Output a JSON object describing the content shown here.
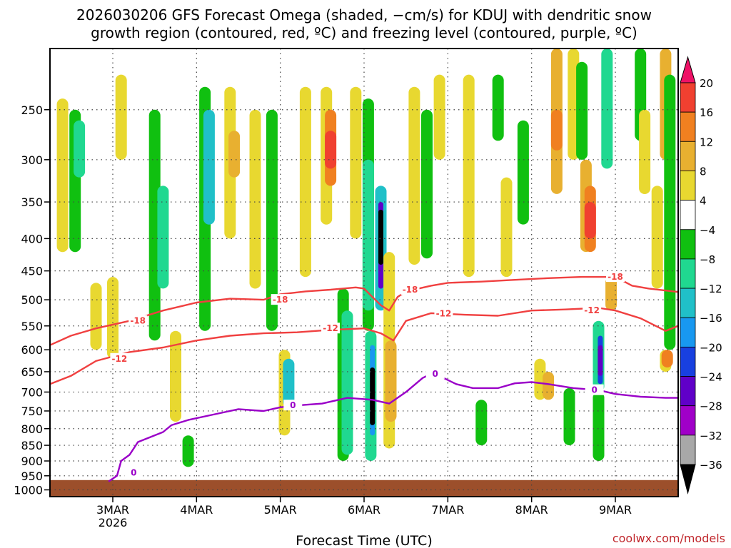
{
  "title": {
    "line1": "2026030206 GFS Forecast Omega (shaded, −cm/s) for KDUJ with dendritic snow",
    "line2": "growth region (contoured, red, ºC) and freezing level (contoured, purple, ºC)"
  },
  "credit": "coolwx.com/models",
  "colors": {
    "dsgz_contour": "#f04040",
    "freezing_contour": "#9a00c8",
    "terrain": "#9c4f2b",
    "grid": "#444444"
  },
  "chart_data": {
    "type": "heatmap",
    "title": "2026030206 GFS Forecast Omega for KDUJ",
    "xlabel": "Forecast Time (UTC)",
    "ylabel": "",
    "x_ticks": [
      {
        "label": "3MAR",
        "sub": "2026",
        "day": 3
      },
      {
        "label": "4MAR",
        "day": 4
      },
      {
        "label": "5MAR",
        "day": 5
      },
      {
        "label": "6MAR",
        "day": 6
      },
      {
        "label": "7MAR",
        "day": 7
      },
      {
        "label": "8MAR",
        "day": 8
      },
      {
        "label": "9MAR",
        "day": 9
      }
    ],
    "xlim": [
      2.25,
      9.75
    ],
    "y_ticks": [
      250,
      300,
      350,
      400,
      450,
      500,
      550,
      600,
      650,
      700,
      750,
      800,
      850,
      900,
      950,
      1000
    ],
    "ylim_hpa": [
      200,
      1025
    ],
    "terrain_surface_hpa": 965,
    "colorbar": {
      "labels": [
        "20",
        "16",
        "12",
        "8",
        "4",
        "−4",
        "−8",
        "−12",
        "−16",
        "−20",
        "−24",
        "−28",
        "−32",
        "−36"
      ],
      "colors": [
        "#ee1166",
        "#f04030",
        "#f08020",
        "#e8b030",
        "#e8d830",
        "#ffffff",
        "#10c010",
        "#20d890",
        "#20c0c8",
        "#1898f0",
        "#1840e0",
        "#6000c8",
        "#a000c8",
        "#a8a8a8",
        "#000000"
      ]
    },
    "omega_cells": [
      {
        "day": 2.4,
        "p0": 240,
        "p1": 420,
        "lvl": 4
      },
      {
        "day": 2.55,
        "p0": 250,
        "p1": 420,
        "lvl": -8
      },
      {
        "day": 2.6,
        "p0": 260,
        "p1": 320,
        "lvl": -12
      },
      {
        "day": 2.8,
        "p0": 470,
        "p1": 600,
        "lvl": 4
      },
      {
        "day": 3.0,
        "p0": 460,
        "p1": 620,
        "lvl": 4
      },
      {
        "day": 3.1,
        "p0": 220,
        "p1": 300,
        "lvl": 4
      },
      {
        "day": 3.5,
        "p0": 250,
        "p1": 580,
        "lvl": -8
      },
      {
        "day": 3.6,
        "p0": 330,
        "p1": 480,
        "lvl": -12
      },
      {
        "day": 3.75,
        "p0": 560,
        "p1": 780,
        "lvl": 4
      },
      {
        "day": 3.9,
        "p0": 820,
        "p1": 920,
        "lvl": -8
      },
      {
        "day": 4.1,
        "p0": 230,
        "p1": 560,
        "lvl": -8
      },
      {
        "day": 4.15,
        "p0": 250,
        "p1": 380,
        "lvl": -16
      },
      {
        "day": 4.4,
        "p0": 230,
        "p1": 400,
        "lvl": 4
      },
      {
        "day": 4.45,
        "p0": 270,
        "p1": 320,
        "lvl": 8
      },
      {
        "day": 4.7,
        "p0": 250,
        "p1": 480,
        "lvl": 4
      },
      {
        "day": 4.9,
        "p0": 250,
        "p1": 560,
        "lvl": -8
      },
      {
        "day": 5.05,
        "p0": 600,
        "p1": 820,
        "lvl": 4
      },
      {
        "day": 5.1,
        "p0": 620,
        "p1": 740,
        "lvl": -16
      },
      {
        "day": 5.3,
        "p0": 230,
        "p1": 460,
        "lvl": 4
      },
      {
        "day": 5.55,
        "p0": 230,
        "p1": 380,
        "lvl": 4
      },
      {
        "day": 5.6,
        "p0": 250,
        "p1": 330,
        "lvl": 12
      },
      {
        "day": 5.6,
        "p0": 270,
        "p1": 310,
        "lvl": 16
      },
      {
        "day": 5.75,
        "p0": 480,
        "p1": 900,
        "lvl": -8
      },
      {
        "day": 5.8,
        "p0": 520,
        "p1": 880,
        "lvl": -12
      },
      {
        "day": 5.9,
        "p0": 230,
        "p1": 400,
        "lvl": 4
      },
      {
        "day": 6.05,
        "p0": 240,
        "p1": 560,
        "lvl": -8
      },
      {
        "day": 6.05,
        "p0": 300,
        "p1": 520,
        "lvl": -12
      },
      {
        "day": 6.08,
        "p0": 560,
        "p1": 900,
        "lvl": -12
      },
      {
        "day": 6.1,
        "p0": 590,
        "p1": 820,
        "lvl": -20
      },
      {
        "day": 6.1,
        "p0": 640,
        "p1": 790,
        "lvl": -36
      },
      {
        "day": 6.2,
        "p0": 330,
        "p1": 520,
        "lvl": -16
      },
      {
        "day": 6.2,
        "p0": 350,
        "p1": 480,
        "lvl": -28
      },
      {
        "day": 6.2,
        "p0": 360,
        "p1": 440,
        "lvl": -36
      },
      {
        "day": 6.3,
        "p0": 420,
        "p1": 860,
        "lvl": 4
      },
      {
        "day": 6.32,
        "p0": 580,
        "p1": 780,
        "lvl": 8
      },
      {
        "day": 6.6,
        "p0": 230,
        "p1": 440,
        "lvl": 4
      },
      {
        "day": 6.75,
        "p0": 250,
        "p1": 430,
        "lvl": -8
      },
      {
        "day": 6.9,
        "p0": 220,
        "p1": 300,
        "lvl": 4
      },
      {
        "day": 7.25,
        "p0": 220,
        "p1": 460,
        "lvl": 4
      },
      {
        "day": 7.4,
        "p0": 720,
        "p1": 850,
        "lvl": -8
      },
      {
        "day": 7.6,
        "p0": 220,
        "p1": 280,
        "lvl": -8
      },
      {
        "day": 7.7,
        "p0": 320,
        "p1": 460,
        "lvl": 4
      },
      {
        "day": 7.9,
        "p0": 260,
        "p1": 380,
        "lvl": -8
      },
      {
        "day": 8.1,
        "p0": 620,
        "p1": 720,
        "lvl": 4
      },
      {
        "day": 8.2,
        "p0": 650,
        "p1": 720,
        "lvl": 8
      },
      {
        "day": 8.3,
        "p0": 200,
        "p1": 340,
        "lvl": 8
      },
      {
        "day": 8.3,
        "p0": 250,
        "p1": 290,
        "lvl": 12
      },
      {
        "day": 8.45,
        "p0": 690,
        "p1": 850,
        "lvl": -8
      },
      {
        "day": 8.5,
        "p0": 200,
        "p1": 300,
        "lvl": 4
      },
      {
        "day": 8.6,
        "p0": 210,
        "p1": 300,
        "lvl": -8
      },
      {
        "day": 8.65,
        "p0": 300,
        "p1": 420,
        "lvl": 8
      },
      {
        "day": 8.7,
        "p0": 330,
        "p1": 420,
        "lvl": 12
      },
      {
        "day": 8.7,
        "p0": 350,
        "p1": 400,
        "lvl": 16
      },
      {
        "day": 8.8,
        "p0": 540,
        "p1": 700,
        "lvl": -12
      },
      {
        "day": 8.82,
        "p0": 570,
        "p1": 680,
        "lvl": -24
      },
      {
        "day": 8.82,
        "p0": 590,
        "p1": 660,
        "lvl": -28
      },
      {
        "day": 8.8,
        "p0": 700,
        "p1": 900,
        "lvl": -8
      },
      {
        "day": 8.9,
        "p0": 200,
        "p1": 310,
        "lvl": -12
      },
      {
        "day": 8.95,
        "p0": 460,
        "p1": 520,
        "lvl": 8
      },
      {
        "day": 9.3,
        "p0": 200,
        "p1": 280,
        "lvl": -8
      },
      {
        "day": 9.35,
        "p0": 250,
        "p1": 340,
        "lvl": 4
      },
      {
        "day": 9.5,
        "p0": 330,
        "p1": 480,
        "lvl": 4
      },
      {
        "day": 9.6,
        "p0": 600,
        "p1": 650,
        "lvl": 4
      },
      {
        "day": 9.6,
        "p0": 200,
        "p1": 300,
        "lvl": 8
      },
      {
        "day": 9.62,
        "p0": 600,
        "p1": 640,
        "lvl": 12
      },
      {
        "day": 9.65,
        "p0": 220,
        "p1": 600,
        "lvl": -8
      }
    ],
    "contours": [
      {
        "name": "-18",
        "color_key": "dsgz_contour",
        "label_text": "-18",
        "points": [
          [
            2.25,
            590
          ],
          [
            2.5,
            570
          ],
          [
            2.8,
            555
          ],
          [
            3.2,
            540
          ],
          [
            3.6,
            520
          ],
          [
            4.0,
            505
          ],
          [
            4.4,
            498
          ],
          [
            4.8,
            500
          ],
          [
            5.0,
            490
          ],
          [
            5.3,
            485
          ],
          [
            5.6,
            482
          ],
          [
            5.9,
            478
          ],
          [
            6.0,
            480
          ],
          [
            6.1,
            495
          ],
          [
            6.2,
            510
          ],
          [
            6.3,
            520
          ],
          [
            6.4,
            495
          ],
          [
            6.5,
            485
          ],
          [
            6.8,
            475
          ],
          [
            7.0,
            470
          ],
          [
            7.4,
            468
          ],
          [
            7.8,
            465
          ],
          [
            8.2,
            462
          ],
          [
            8.6,
            460
          ],
          [
            9.0,
            460
          ],
          [
            9.2,
            475
          ],
          [
            9.4,
            480
          ],
          [
            9.75,
            486
          ]
        ],
        "labels_at": [
          [
            3.3,
            540
          ],
          [
            5.0,
            500
          ],
          [
            6.55,
            482
          ],
          [
            9.0,
            460
          ]
        ]
      },
      {
        "name": "-12",
        "color_key": "dsgz_contour",
        "label_text": "-12",
        "points": [
          [
            2.25,
            680
          ],
          [
            2.5,
            660
          ],
          [
            2.8,
            625
          ],
          [
            3.2,
            605
          ],
          [
            3.6,
            595
          ],
          [
            4.0,
            580
          ],
          [
            4.4,
            570
          ],
          [
            4.8,
            565
          ],
          [
            5.2,
            563
          ],
          [
            5.6,
            558
          ],
          [
            6.0,
            555
          ],
          [
            6.2,
            565
          ],
          [
            6.35,
            580
          ],
          [
            6.5,
            540
          ],
          [
            6.8,
            525
          ],
          [
            7.2,
            528
          ],
          [
            7.6,
            530
          ],
          [
            8.0,
            520
          ],
          [
            8.4,
            518
          ],
          [
            8.8,
            515
          ],
          [
            9.0,
            520
          ],
          [
            9.3,
            535
          ],
          [
            9.6,
            560
          ],
          [
            9.75,
            550
          ]
        ],
        "labels_at": [
          [
            3.08,
            620
          ],
          [
            5.6,
            555
          ],
          [
            6.95,
            526
          ],
          [
            8.72,
            520
          ]
        ]
      },
      {
        "name": "0",
        "color_key": "freezing_contour",
        "label_text": "0",
        "points": [
          [
            2.95,
            970
          ],
          [
            3.05,
            950
          ],
          [
            3.1,
            900
          ],
          [
            3.2,
            880
          ],
          [
            3.3,
            840
          ],
          [
            3.6,
            810
          ],
          [
            3.7,
            790
          ],
          [
            3.9,
            775
          ],
          [
            4.2,
            760
          ],
          [
            4.5,
            745
          ],
          [
            4.8,
            750
          ],
          [
            5.0,
            740
          ],
          [
            5.2,
            735
          ],
          [
            5.5,
            730
          ],
          [
            5.8,
            715
          ],
          [
            6.1,
            720
          ],
          [
            6.3,
            730
          ],
          [
            6.5,
            700
          ],
          [
            6.7,
            665
          ],
          [
            6.8,
            655
          ],
          [
            6.9,
            660
          ],
          [
            7.1,
            680
          ],
          [
            7.3,
            690
          ],
          [
            7.6,
            690
          ],
          [
            7.8,
            678
          ],
          [
            8.0,
            675
          ],
          [
            8.2,
            680
          ],
          [
            8.5,
            690
          ],
          [
            8.8,
            695
          ],
          [
            9.0,
            705
          ],
          [
            9.3,
            712
          ],
          [
            9.6,
            715
          ],
          [
            9.75,
            715
          ]
        ],
        "labels_at": [
          [
            3.25,
            940
          ],
          [
            5.15,
            735
          ],
          [
            6.85,
            655
          ],
          [
            8.75,
            695
          ]
        ]
      }
    ]
  }
}
